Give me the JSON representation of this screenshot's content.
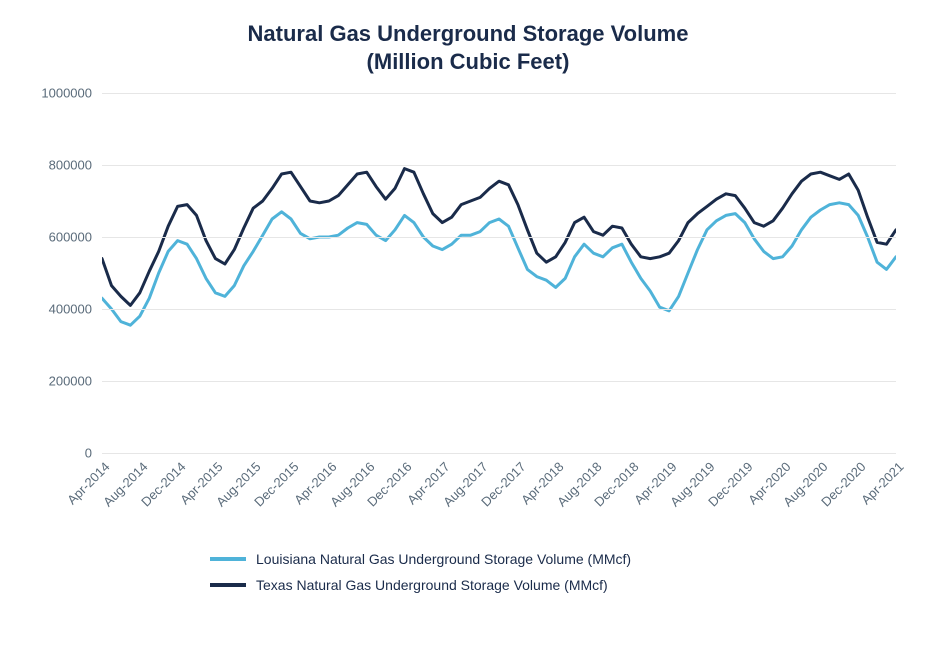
{
  "chart": {
    "type": "line",
    "title_line1": "Natural Gas Underground Storage Volume",
    "title_line2": "(Million Cubic Feet)",
    "title_fontsize": 22,
    "title_color": "#1a2b4a",
    "background_color": "#ffffff",
    "grid_color": "#e6e6e6",
    "axis_label_color": "#5a6b7a",
    "axis_label_fontsize": 13,
    "ylim": [
      0,
      1000000
    ],
    "yticks": [
      0,
      200000,
      400000,
      600000,
      800000,
      1000000
    ],
    "x_labels": [
      "Apr-2014",
      "Aug-2014",
      "Dec-2014",
      "Apr-2015",
      "Aug-2015",
      "Dec-2015",
      "Apr-2016",
      "Aug-2016",
      "Dec-2016",
      "Apr-2017",
      "Aug-2017",
      "Dec-2017",
      "Apr-2018",
      "Aug-2018",
      "Dec-2018",
      "Apr-2019",
      "Aug-2019",
      "Dec-2019",
      "Apr-2020",
      "Aug-2020",
      "Dec-2020",
      "Apr-2021"
    ],
    "x_label_step_months": 4,
    "n_points": 85,
    "line_width": 3,
    "series": [
      {
        "name": "Louisiana Natural Gas Underground Storage Volume (MMcf)",
        "color": "#4fb3d9",
        "values": [
          430000,
          400000,
          365000,
          355000,
          380000,
          430000,
          500000,
          560000,
          590000,
          580000,
          540000,
          485000,
          445000,
          435000,
          465000,
          520000,
          560000,
          605000,
          650000,
          670000,
          650000,
          610000,
          595000,
          600000,
          600000,
          605000,
          625000,
          640000,
          635000,
          605000,
          590000,
          620000,
          660000,
          640000,
          600000,
          575000,
          565000,
          580000,
          605000,
          605000,
          615000,
          640000,
          650000,
          630000,
          570000,
          510000,
          490000,
          480000,
          460000,
          485000,
          545000,
          580000,
          555000,
          545000,
          570000,
          580000,
          530000,
          485000,
          450000,
          405000,
          395000,
          435000,
          500000,
          565000,
          620000,
          645000,
          660000,
          665000,
          640000,
          595000,
          560000,
          540000,
          545000,
          575000,
          620000,
          655000,
          675000,
          690000,
          695000,
          690000,
          660000,
          600000,
          530000,
          510000,
          545000
        ]
      },
      {
        "name": "Texas Natural Gas Underground Storage Volume (MMcf)",
        "color": "#1a2b4a",
        "values": [
          540000,
          465000,
          435000,
          410000,
          445000,
          505000,
          560000,
          630000,
          685000,
          690000,
          660000,
          590000,
          540000,
          525000,
          565000,
          625000,
          680000,
          700000,
          735000,
          775000,
          780000,
          740000,
          700000,
          695000,
          700000,
          715000,
          745000,
          775000,
          780000,
          740000,
          705000,
          735000,
          790000,
          780000,
          720000,
          665000,
          640000,
          655000,
          690000,
          700000,
          710000,
          735000,
          755000,
          745000,
          690000,
          620000,
          555000,
          530000,
          545000,
          585000,
          640000,
          655000,
          615000,
          605000,
          630000,
          625000,
          580000,
          545000,
          540000,
          545000,
          555000,
          590000,
          640000,
          665000,
          685000,
          705000,
          720000,
          715000,
          680000,
          640000,
          630000,
          645000,
          680000,
          720000,
          755000,
          775000,
          780000,
          770000,
          760000,
          775000,
          730000,
          655000,
          585000,
          580000,
          620000
        ]
      }
    ],
    "legend": {
      "fontsize": 14,
      "swatch_width": 36,
      "swatch_stroke": 4
    }
  }
}
